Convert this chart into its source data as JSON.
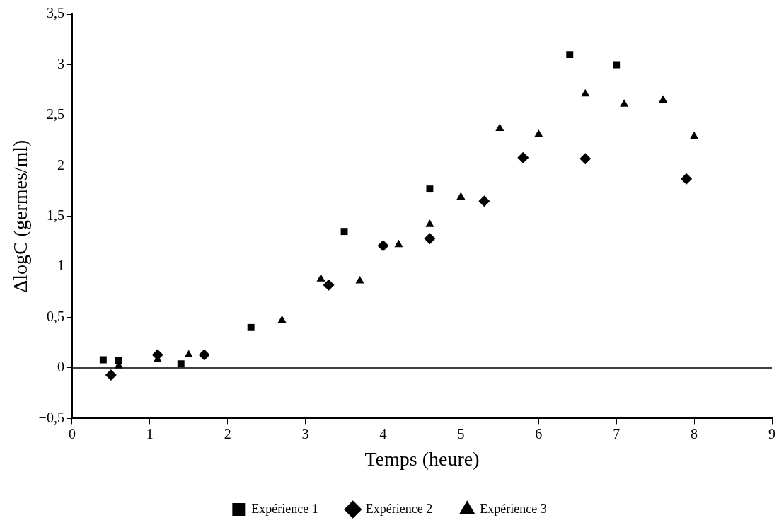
{
  "chart_data": {
    "type": "scatter",
    "xlabel": "Temps (heure)",
    "ylabel": "ΔlogC (germes/ml)",
    "xlim": [
      0,
      9
    ],
    "xticks": [
      0,
      1,
      2,
      3,
      4,
      5,
      6,
      7,
      8,
      9
    ],
    "ylim": [
      -0.5,
      3.5
    ],
    "yticks": [
      {
        "value": -0.5,
        "label": "−0,5"
      },
      0,
      {
        "value": 0.5,
        "label": "0,5"
      },
      1,
      {
        "value": 1.5,
        "label": "1,5"
      },
      2,
      {
        "value": 2.5,
        "label": "2,5"
      },
      3,
      {
        "value": 3.5,
        "label": "3,5"
      }
    ],
    "grid": false,
    "legend": "bottom",
    "ref_lines": [
      {
        "axis": "y",
        "value": 0,
        "color": "#000000",
        "line_style": "solid"
      }
    ],
    "series": [
      {
        "name": "Expérience 1",
        "color": "#000000",
        "marker": "square",
        "x": [
          0.4,
          0.6,
          1.4,
          2.3,
          3.5,
          4.6,
          6.4,
          7.0
        ],
        "values": [
          0.08,
          0.07,
          0.04,
          0.4,
          1.35,
          1.77,
          3.1,
          3.0
        ]
      },
      {
        "name": "Expérience 2",
        "color": "#000000",
        "marker": "diamond",
        "x": [
          0.5,
          1.1,
          1.7,
          3.3,
          4.0,
          4.6,
          5.3,
          5.8,
          6.6,
          7.9
        ],
        "values": [
          -0.07,
          0.13,
          0.13,
          0.82,
          1.21,
          1.28,
          1.65,
          2.08,
          2.07,
          1.87
        ]
      },
      {
        "name": "Expérience 3",
        "color": "#000000",
        "marker": "triangle",
        "x": [
          0.6,
          1.1,
          1.5,
          2.7,
          3.2,
          3.7,
          4.2,
          4.6,
          5.0,
          5.5,
          6.0,
          6.6,
          7.1,
          7.6,
          8.0
        ],
        "values": [
          0.02,
          0.08,
          0.13,
          0.47,
          0.88,
          0.86,
          1.22,
          1.42,
          1.69,
          2.37,
          2.31,
          2.71,
          2.61,
          2.65,
          2.29
        ]
      }
    ]
  }
}
